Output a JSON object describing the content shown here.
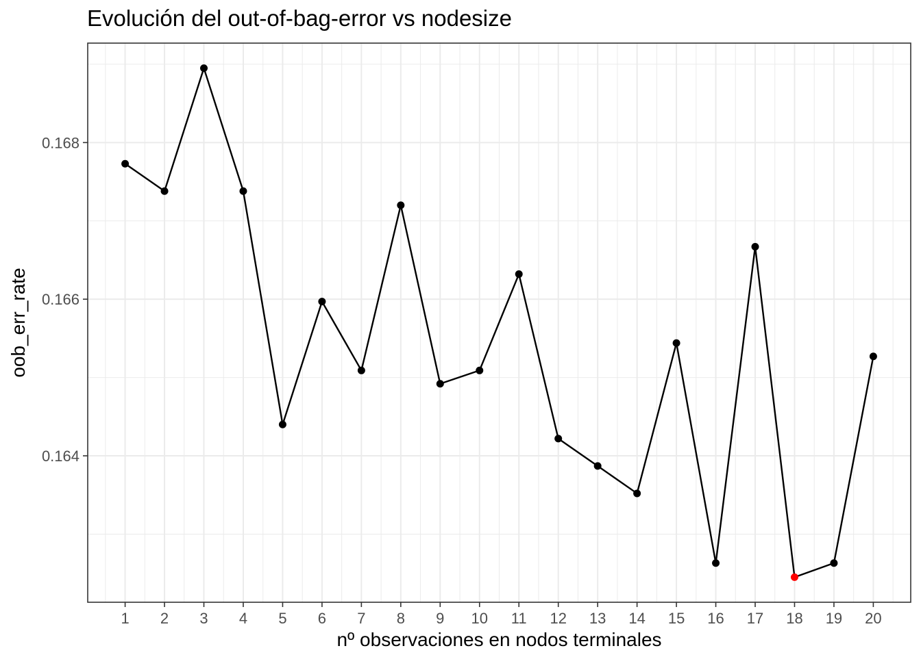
{
  "chart_data": {
    "type": "line",
    "title": "Evolución del out-of-bag-error vs nodesize",
    "xlabel": "nº observaciones en nodos terminales",
    "ylabel": "oob_err_rate",
    "x": [
      1,
      2,
      3,
      4,
      5,
      6,
      7,
      8,
      9,
      10,
      11,
      12,
      13,
      14,
      15,
      16,
      17,
      18,
      19,
      20
    ],
    "x_tick_labels": [
      "1",
      "2",
      "3",
      "4",
      "5",
      "6",
      "7",
      "8",
      "9",
      "10",
      "11",
      "12",
      "13",
      "14",
      "15",
      "16",
      "17",
      "18",
      "19",
      "20"
    ],
    "series": [
      {
        "values": [
          0.16773,
          0.16738,
          0.16895,
          0.16738,
          0.1644,
          0.16597,
          0.16509,
          0.1672,
          0.16492,
          0.16509,
          0.16632,
          0.16422,
          0.16387,
          0.16352,
          0.16544,
          0.16263,
          0.16667,
          0.16245,
          0.16263,
          0.16527
        ],
        "color": "#000000"
      }
    ],
    "highlight": {
      "x": 18,
      "color": "#ff0000"
    },
    "y_ticks": [
      0.164,
      0.166,
      0.168
    ],
    "y_tick_labels": [
      "0.164",
      "0.166",
      "0.168"
    ],
    "xlim": [
      0.05,
      20.95
    ],
    "ylim": [
      0.16213,
      0.16927
    ],
    "grid": true,
    "theme": "bw"
  }
}
